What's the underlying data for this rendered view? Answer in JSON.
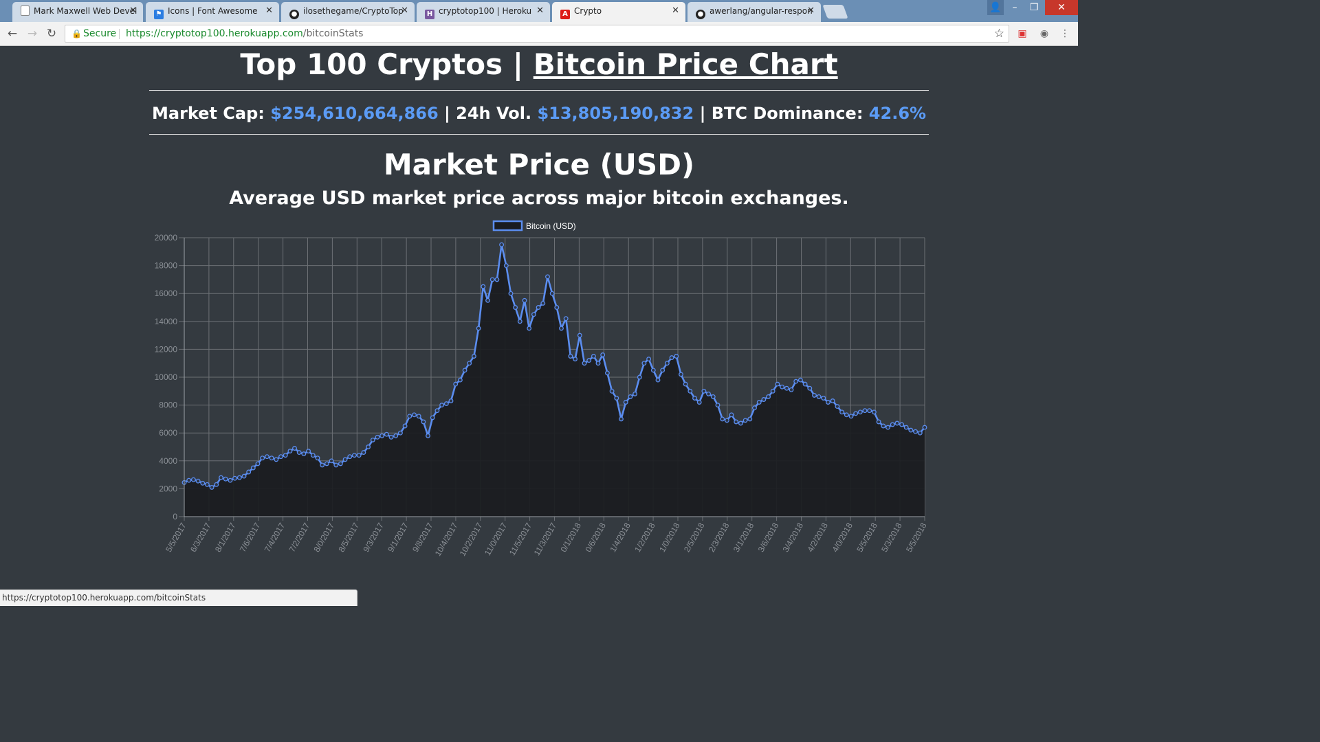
{
  "browser": {
    "tabs": [
      {
        "title": "Mark Maxwell Web Devel",
        "icon": "page-icon",
        "active": false
      },
      {
        "title": "Icons | Font Awesome",
        "icon": "flag-icon",
        "active": false
      },
      {
        "title": "ilosethegame/CryptoTop",
        "icon": "github-icon",
        "active": false
      },
      {
        "title": "cryptotop100 | Heroku",
        "icon": "heroku-icon",
        "active": false
      },
      {
        "title": "Crypto",
        "icon": "angular-icon",
        "active": true
      },
      {
        "title": "awerlang/angular-respon",
        "icon": "github-icon",
        "active": false
      }
    ],
    "secure_label": "Secure",
    "url_host": "https://cryptotop100.herokuapp.com",
    "url_path": "/bitcoinStats",
    "status_text": "https://cryptotop100.herokuapp.com/bitcoinStats"
  },
  "header": {
    "brand": "Top 100 Cryptos |",
    "link": "Bitcoin Price Chart"
  },
  "stats": {
    "market_cap_label": "Market Cap:",
    "market_cap": "$254,610,664,866",
    "sep1": "|",
    "vol_label": "24h Vol.",
    "vol": "$13,805,190,832",
    "sep2": "|",
    "dominance_label": "BTC Dominance:",
    "dominance": "42.6%"
  },
  "chart": {
    "title": "Market Price (USD)",
    "subtitle": "Average USD market price across major bitcoin exchanges."
  },
  "colors": {
    "accent": "#5b9bf5",
    "line": "#5b8def",
    "fill": "#1a1c20",
    "background": "#343a40"
  },
  "chart_data": {
    "type": "line",
    "legend": "top",
    "grid": true,
    "ylim": [
      0,
      20000
    ],
    "yticks": [
      0,
      2000,
      4000,
      6000,
      8000,
      10000,
      12000,
      14000,
      16000,
      18000,
      20000
    ],
    "xticks": [
      "5/5/2017",
      "6/3/2017",
      "8/1/2017",
      "7/6/2017",
      "7/4/2017",
      "7/2/2017",
      "8/0/2017",
      "8/5/2017",
      "9/3/2017",
      "9/1/2017",
      "9/8/2017",
      "10/4/2017",
      "10/2/2017",
      "11/0/2017",
      "11/5/2017",
      "11/3/2017",
      "0/1/2018",
      "0/6/2018",
      "1/4/2018",
      "1/2/2018",
      "1/0/2018",
      "2/5/2018",
      "2/3/2018",
      "3/1/2018",
      "3/6/2018",
      "3/4/2018",
      "4/2/2018",
      "4/0/2018",
      "5/5/2018",
      "5/3/2018",
      "5/5/2018"
    ],
    "series": [
      {
        "name": "Bitcoin (USD)",
        "values": [
          2450,
          2600,
          2650,
          2550,
          2400,
          2300,
          2100,
          2300,
          2800,
          2700,
          2600,
          2750,
          2800,
          2900,
          3200,
          3500,
          3800,
          4200,
          4300,
          4200,
          4100,
          4300,
          4400,
          4700,
          4900,
          4600,
          4500,
          4700,
          4400,
          4200,
          3700,
          3800,
          4000,
          3700,
          3800,
          4100,
          4300,
          4400,
          4400,
          4600,
          5000,
          5500,
          5700,
          5800,
          5900,
          5700,
          5800,
          6000,
          6500,
          7200,
          7300,
          7200,
          6800,
          5800,
          7100,
          7600,
          8000,
          8100,
          8300,
          9500,
          9800,
          10500,
          11000,
          11500,
          13500,
          16500,
          15500,
          17000,
          17000,
          19500,
          18000,
          16000,
          15000,
          14000,
          15500,
          13500,
          14500,
          15000,
          15300,
          17200,
          16000,
          15000,
          13500,
          14200,
          11500,
          11300,
          13000,
          11000,
          11200,
          11500,
          11000,
          11600,
          10300,
          9000,
          8500,
          7000,
          8200,
          8600,
          8800,
          10000,
          11000,
          11300,
          10500,
          9800,
          10500,
          11000,
          11400,
          11500,
          10200,
          9500,
          9000,
          8500,
          8200,
          9000,
          8800,
          8600,
          8000,
          7000,
          6900,
          7300,
          6800,
          6700,
          6900,
          7000,
          7800,
          8200,
          8400,
          8600,
          9000,
          9500,
          9300,
          9200,
          9100,
          9700,
          9800,
          9500,
          9200,
          8700,
          8600,
          8500,
          8200,
          8300,
          7900,
          7500,
          7300,
          7200,
          7400,
          7500,
          7600,
          7600,
          7500,
          6800,
          6500,
          6400,
          6600,
          6700,
          6600,
          6400,
          6200,
          6100,
          6000,
          6400
        ]
      }
    ]
  }
}
